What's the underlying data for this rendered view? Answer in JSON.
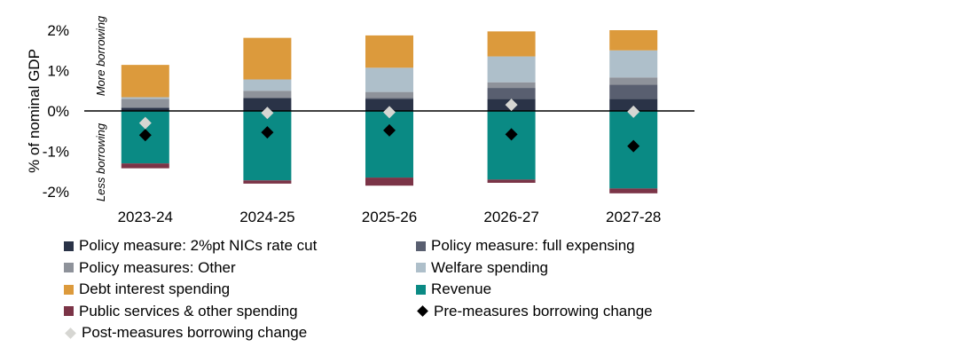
{
  "colors": {
    "nics": "#2a3347",
    "expensing": "#595f70",
    "other_measures": "#8e929a",
    "welfare": "#aebfca",
    "debt_interest": "#dc9a3c",
    "revenue": "#0a8a84",
    "public_services": "#7b3447",
    "pre_measures": "#000000",
    "post_measures": "#d6d6d2"
  },
  "chart_data": {
    "type": "bar",
    "stacked": true,
    "ylabel": "% of nominal GDP",
    "ylim": [
      -2.2,
      2.2
    ],
    "yticks": [
      2,
      1,
      0,
      -1,
      -2
    ],
    "ytick_labels": [
      "2%",
      "1%",
      "0%",
      "-1%",
      "-2%"
    ],
    "annotation_top": "More borrowing",
    "annotation_bottom": "Less borrowing",
    "categories": [
      "2023-24",
      "2024-25",
      "2025-26",
      "2026-27",
      "2027-28"
    ],
    "series": [
      {
        "name": "Policy measure: 2%pt NICs rate cut",
        "key": "nics",
        "kind": "bar",
        "values": [
          0.08,
          0.32,
          0.3,
          0.3,
          0.3
        ]
      },
      {
        "name": "Policy measure: full expensing",
        "key": "expensing",
        "kind": "bar",
        "values": [
          0.0,
          0.0,
          0.02,
          0.27,
          0.35
        ]
      },
      {
        "name": "Policy measures: Other",
        "key": "other_measures",
        "kind": "bar",
        "values": [
          0.22,
          0.18,
          0.15,
          0.14,
          0.18
        ]
      },
      {
        "name": "Welfare spending",
        "key": "welfare",
        "kind": "bar",
        "values": [
          0.04,
          0.28,
          0.6,
          0.64,
          0.67
        ]
      },
      {
        "name": "Debt interest spending",
        "key": "debt_interest",
        "kind": "bar",
        "values": [
          0.8,
          1.03,
          0.8,
          0.62,
          0.5
        ]
      },
      {
        "name": "Revenue",
        "key": "revenue",
        "kind": "bar",
        "values": [
          -1.3,
          -1.72,
          -1.65,
          -1.7,
          -1.92
        ]
      },
      {
        "name": "Public services & other spending",
        "key": "public_services",
        "kind": "bar",
        "values": [
          -0.12,
          -0.08,
          -0.2,
          -0.08,
          -0.12
        ]
      },
      {
        "name": "Pre-measures borrowing change",
        "key": "pre_measures",
        "kind": "marker",
        "values": [
          -0.6,
          -0.53,
          -0.48,
          -0.58,
          -0.87
        ]
      },
      {
        "name": "Post-measures borrowing change",
        "key": "post_measures",
        "kind": "marker",
        "values": [
          -0.3,
          -0.05,
          -0.03,
          0.15,
          -0.02
        ]
      }
    ]
  }
}
